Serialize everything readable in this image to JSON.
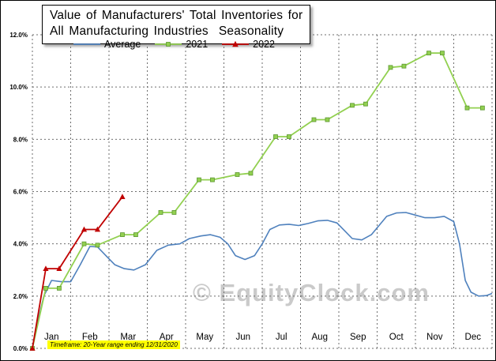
{
  "title_box": {
    "line1": "Value of Manufacturers' Total Inventories for",
    "line2": "All Manufacturing Industries  Seasonality"
  },
  "watermark": "© EquityClock.com",
  "footer": {
    "note": "Timeframe: 20-Year range ending 12/31/2020",
    "highlight_color": "#FFFF00"
  },
  "chart_data": {
    "type": "line",
    "title": "Value of Manufacturers' Total Inventories for All Manufacturing Industries  Seasonality",
    "xlabel": "",
    "ylabel": "",
    "xlim": [
      0,
      12
    ],
    "ylim": [
      0,
      12
    ],
    "grid": "dashed",
    "legend_position": "top",
    "x_unit": "months",
    "x_tick_labels": [
      "Jan",
      "Feb",
      "Mar",
      "Apr",
      "May",
      "Jun",
      "Jul",
      "Aug",
      "Sep",
      "Oct",
      "Nov",
      "Dec"
    ],
    "y_ticks": [
      0,
      2,
      4,
      6,
      8,
      10,
      12
    ],
    "y_tick_labels": [
      "0.0%",
      "2.0%",
      "4.0%",
      "6.0%",
      "8.0%",
      "10.0%",
      "12.0%"
    ],
    "series": [
      {
        "name": "Average",
        "color": "#4F81BD",
        "marker": "none",
        "width": 1.6,
        "points": [
          [
            0,
            0
          ],
          [
            0.12,
            0.9
          ],
          [
            0.3,
            2.0
          ],
          [
            0.5,
            2.6
          ],
          [
            0.75,
            2.55
          ],
          [
            1.0,
            2.55
          ],
          [
            1.25,
            3.2
          ],
          [
            1.5,
            3.9
          ],
          [
            1.7,
            3.88
          ],
          [
            1.95,
            3.5
          ],
          [
            2.15,
            3.2
          ],
          [
            2.4,
            3.05
          ],
          [
            2.65,
            3.0
          ],
          [
            2.95,
            3.2
          ],
          [
            3.25,
            3.75
          ],
          [
            3.55,
            3.95
          ],
          [
            3.85,
            4.0
          ],
          [
            4.1,
            4.2
          ],
          [
            4.4,
            4.3
          ],
          [
            4.65,
            4.35
          ],
          [
            4.9,
            4.25
          ],
          [
            5.1,
            4.0
          ],
          [
            5.3,
            3.55
          ],
          [
            5.55,
            3.4
          ],
          [
            5.8,
            3.55
          ],
          [
            6.0,
            4.0
          ],
          [
            6.2,
            4.55
          ],
          [
            6.45,
            4.72
          ],
          [
            6.7,
            4.75
          ],
          [
            6.95,
            4.7
          ],
          [
            7.2,
            4.78
          ],
          [
            7.45,
            4.88
          ],
          [
            7.7,
            4.9
          ],
          [
            7.95,
            4.8
          ],
          [
            8.15,
            4.5
          ],
          [
            8.35,
            4.2
          ],
          [
            8.6,
            4.15
          ],
          [
            8.85,
            4.35
          ],
          [
            9.05,
            4.7
          ],
          [
            9.25,
            5.05
          ],
          [
            9.5,
            5.18
          ],
          [
            9.75,
            5.2
          ],
          [
            10.0,
            5.1
          ],
          [
            10.25,
            5.0
          ],
          [
            10.5,
            5.0
          ],
          [
            10.75,
            5.05
          ],
          [
            11.0,
            4.85
          ],
          [
            11.15,
            4.0
          ],
          [
            11.3,
            2.6
          ],
          [
            11.45,
            2.15
          ],
          [
            11.65,
            2.0
          ],
          [
            11.85,
            2.02
          ],
          [
            12.0,
            2.1
          ]
        ]
      },
      {
        "name": "2021",
        "color": "#92D050",
        "marker": "square",
        "marker_stroke": "#5d9732",
        "width": 1.8,
        "points": [
          [
            0,
            0
          ],
          [
            0.35,
            2.3
          ],
          [
            0.7,
            2.3
          ],
          [
            1.35,
            4.0
          ],
          [
            1.7,
            3.95
          ],
          [
            2.35,
            4.35
          ],
          [
            2.7,
            4.35
          ],
          [
            3.35,
            5.2
          ],
          [
            3.7,
            5.2
          ],
          [
            4.35,
            6.45
          ],
          [
            4.7,
            6.45
          ],
          [
            5.35,
            6.65
          ],
          [
            5.7,
            6.7
          ],
          [
            6.35,
            8.1
          ],
          [
            6.7,
            8.1
          ],
          [
            7.35,
            8.75
          ],
          [
            7.7,
            8.75
          ],
          [
            8.35,
            9.3
          ],
          [
            8.7,
            9.35
          ],
          [
            9.35,
            10.75
          ],
          [
            9.7,
            10.8
          ],
          [
            10.35,
            11.3
          ],
          [
            10.7,
            11.3
          ],
          [
            11.35,
            9.2
          ],
          [
            11.75,
            9.2
          ]
        ]
      },
      {
        "name": "2022",
        "color": "#C00000",
        "marker": "triangle",
        "width": 1.8,
        "points": [
          [
            0,
            0
          ],
          [
            0.35,
            3.05
          ],
          [
            0.7,
            3.05
          ],
          [
            1.35,
            4.55
          ],
          [
            1.7,
            4.55
          ],
          [
            2.35,
            5.8
          ]
        ]
      }
    ]
  }
}
